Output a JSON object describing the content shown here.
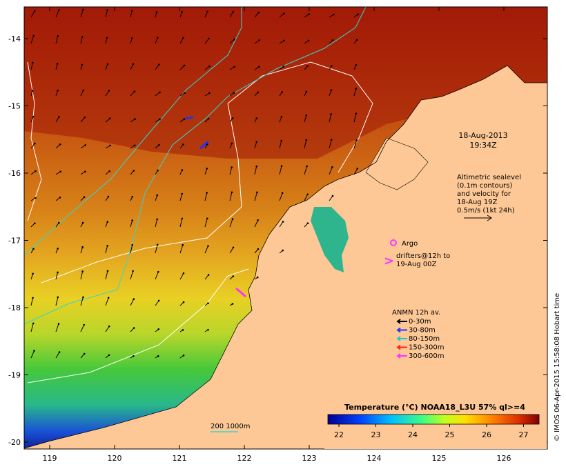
{
  "timestamp": {
    "date": "18-Aug-2013",
    "time": "19:34Z"
  },
  "altimetry": {
    "lines": [
      "Altimetric sealevel",
      "(0.1m contours)",
      "and velocity for",
      "18-Aug 19Z",
      "0.5m/s (1kt 24h)"
    ]
  },
  "argo_label": "Argo",
  "drifters": {
    "line1": "drifters@12h to",
    "line2": "19-Aug 00Z"
  },
  "anmn": {
    "title": "ANMN 12h av.",
    "items": [
      {
        "label": "0-30m",
        "color": "#000000"
      },
      {
        "label": "30-80m",
        "color": "#1a33ff"
      },
      {
        "label": "80-150m",
        "color": "#20c8c8"
      },
      {
        "label": "150-300m",
        "color": "#ff2020"
      },
      {
        "label": "300-600m",
        "color": "#ff33ff"
      }
    ]
  },
  "colorbar": {
    "title": "Temperature (°C) NOAA18_L3U 57% ql>=4",
    "ticks": [
      "22",
      "23",
      "24",
      "25",
      "26",
      "27"
    ]
  },
  "depth_legend": "200  1000m",
  "credit": "© IMOS 06-Apr-2015 15:58:08 Hobart time",
  "axes": {
    "x_ticks": [
      "119",
      "120",
      "121",
      "122",
      "123",
      "124",
      "125",
      "126"
    ],
    "y_ticks": [
      "-14",
      "-15",
      "-16",
      "-17",
      "-18",
      "-19",
      "-20"
    ]
  },
  "colors": {
    "land": "#fdc896",
    "warm": "#a8200c",
    "cool": "#1c2fc0"
  }
}
